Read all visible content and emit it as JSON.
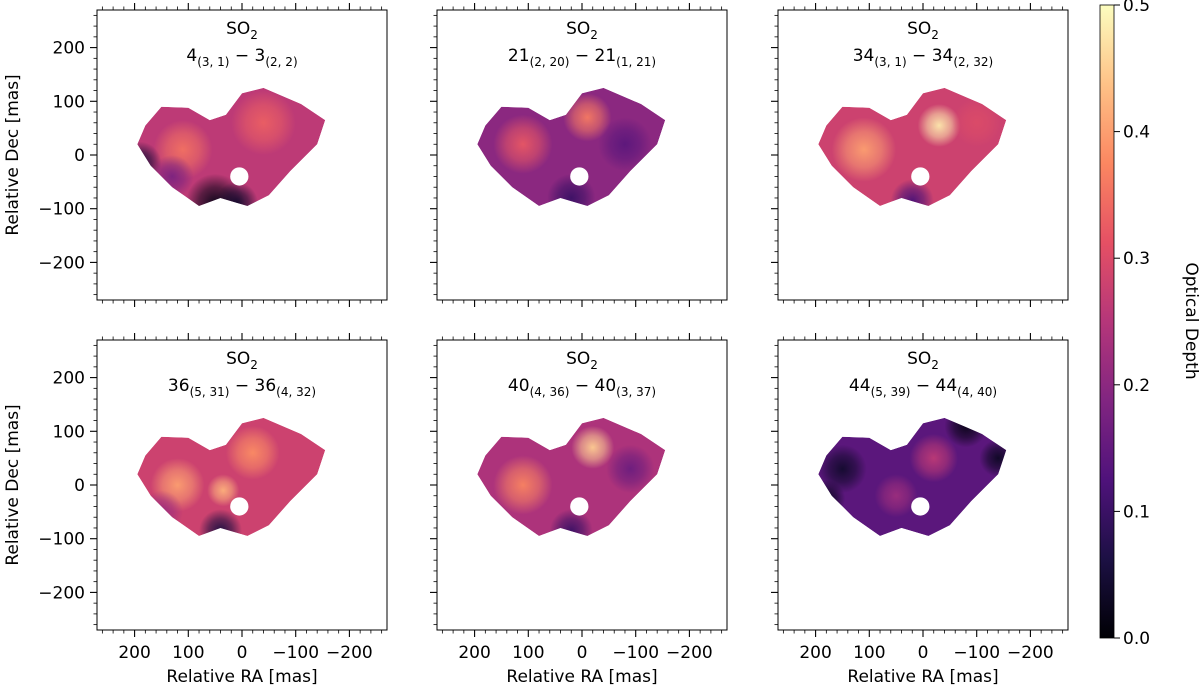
{
  "chart_data": {
    "type": "heatmap",
    "xlabel": "Relative RA [mas]",
    "ylabel": "Relative Dec [mas]",
    "xlim": [
      270,
      -270
    ],
    "ylim": [
      -270,
      270
    ],
    "xticks": [
      200,
      100,
      0,
      -100,
      -200
    ],
    "xtick_labels": [
      "200",
      "100",
      "0",
      "−100",
      "−200"
    ],
    "yticks": [
      200,
      100,
      0,
      -100,
      -200
    ],
    "ytick_labels": [
      "200",
      "100",
      "0",
      "−100",
      "−200"
    ],
    "colorbar": {
      "label": "Optical Depth",
      "vmin": 0.0,
      "vmax": 0.5,
      "ticks": [
        0.0,
        0.1,
        0.2,
        0.3,
        0.4,
        0.5
      ],
      "tick_labels": [
        "0.0",
        "0.1",
        "0.2",
        "0.3",
        "0.4",
        "0.5"
      ],
      "colormap": "magma"
    },
    "region_outline": [
      [
        180,
        55
      ],
      [
        150,
        90
      ],
      [
        100,
        88
      ],
      [
        60,
        65
      ],
      [
        30,
        75
      ],
      [
        0,
        115
      ],
      [
        -40,
        125
      ],
      [
        -110,
        95
      ],
      [
        -155,
        65
      ],
      [
        -140,
        20
      ],
      [
        -90,
        -30
      ],
      [
        -50,
        -75
      ],
      [
        -10,
        -95
      ],
      [
        40,
        -80
      ],
      [
        80,
        -95
      ],
      [
        130,
        -60
      ],
      [
        170,
        -20
      ],
      [
        195,
        20
      ]
    ],
    "hole": {
      "x": 5,
      "y": -40,
      "r": 17
    },
    "panels": [
      {
        "molecule": "SO",
        "mol_sub": "2",
        "level": "4",
        "upper": "(3, 1)",
        "sep": " − ",
        "level2": "3",
        "lower": "(2, 2)",
        "mean_depth": 0.26,
        "blobs": [
          {
            "x": 110,
            "y": 10,
            "v": 0.35,
            "r": 55
          },
          {
            "x": -40,
            "y": 60,
            "v": 0.33,
            "r": 60
          },
          {
            "x": 50,
            "y": -90,
            "v": 0.02,
            "r": 55
          },
          {
            "x": 10,
            "y": -90,
            "v": 0.04,
            "r": 40
          },
          {
            "x": 190,
            "y": -15,
            "v": 0.05,
            "r": 40
          },
          {
            "x": 130,
            "y": -40,
            "v": 0.18,
            "r": 40
          }
        ]
      },
      {
        "molecule": "SO",
        "mol_sub": "2",
        "level": "21",
        "upper": "(2, 20)",
        "sep": " − ",
        "level2": "21",
        "lower": "(1, 21)",
        "mean_depth": 0.2,
        "blobs": [
          {
            "x": 110,
            "y": 20,
            "v": 0.32,
            "r": 55
          },
          {
            "x": -10,
            "y": 70,
            "v": 0.36,
            "r": 45
          },
          {
            "x": -80,
            "y": 20,
            "v": 0.14,
            "r": 50
          },
          {
            "x": 20,
            "y": -80,
            "v": 0.1,
            "r": 45
          }
        ]
      },
      {
        "molecule": "SO",
        "mol_sub": "2",
        "level": "34",
        "upper": "(3, 1)",
        "sep": " − ",
        "level2": "34",
        "lower": "(2, 32)",
        "mean_depth": 0.28,
        "blobs": [
          {
            "x": 110,
            "y": 10,
            "v": 0.4,
            "r": 60
          },
          {
            "x": -30,
            "y": 55,
            "v": 0.48,
            "r": 40
          },
          {
            "x": -100,
            "y": 60,
            "v": 0.3,
            "r": 45
          },
          {
            "x": 20,
            "y": -85,
            "v": 0.12,
            "r": 40
          }
        ]
      },
      {
        "molecule": "SO",
        "mol_sub": "2",
        "level": "36",
        "upper": "(5, 31)",
        "sep": " − ",
        "level2": "36",
        "lower": "(4, 32)",
        "mean_depth": 0.28,
        "blobs": [
          {
            "x": 120,
            "y": 0,
            "v": 0.4,
            "r": 50
          },
          {
            "x": 35,
            "y": -10,
            "v": 0.42,
            "r": 30
          },
          {
            "x": -20,
            "y": 60,
            "v": 0.38,
            "r": 50
          },
          {
            "x": 40,
            "y": -85,
            "v": 0.06,
            "r": 40
          },
          {
            "x": 150,
            "y": -50,
            "v": 0.22,
            "r": 40
          }
        ]
      },
      {
        "molecule": "SO",
        "mol_sub": "2",
        "level": "40",
        "upper": "(4, 36)",
        "sep": " − ",
        "level2": "40",
        "lower": "(3, 37)",
        "mean_depth": 0.24,
        "blobs": [
          {
            "x": 110,
            "y": 0,
            "v": 0.37,
            "r": 55
          },
          {
            "x": -20,
            "y": 70,
            "v": 0.45,
            "r": 40
          },
          {
            "x": -90,
            "y": 30,
            "v": 0.16,
            "r": 45
          },
          {
            "x": 20,
            "y": -85,
            "v": 0.1,
            "r": 40
          }
        ]
      },
      {
        "molecule": "SO",
        "mol_sub": "2",
        "level": "44",
        "upper": "(5, 39)",
        "sep": " − ",
        "level2": "44",
        "lower": "(4, 40)",
        "mean_depth": 0.14,
        "blobs": [
          {
            "x": 150,
            "y": 30,
            "v": 0.04,
            "r": 45
          },
          {
            "x": 180,
            "y": -25,
            "v": 0.03,
            "r": 35
          },
          {
            "x": -80,
            "y": 110,
            "v": 0.02,
            "r": 40
          },
          {
            "x": -140,
            "y": 50,
            "v": 0.03,
            "r": 35
          },
          {
            "x": -20,
            "y": 50,
            "v": 0.26,
            "r": 45
          },
          {
            "x": 50,
            "y": -20,
            "v": 0.22,
            "r": 40
          }
        ]
      }
    ]
  }
}
